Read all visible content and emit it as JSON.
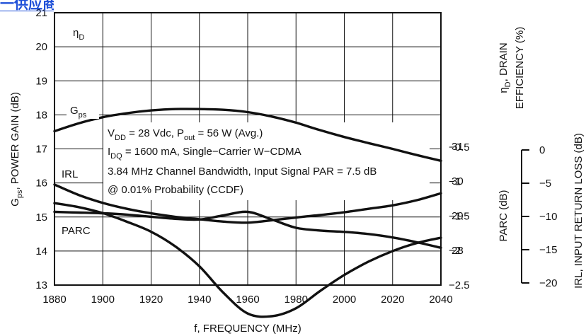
{
  "watermark_text": "一供应商",
  "chart_data": {
    "type": "line",
    "title": "",
    "xlabel": "f, FREQUENCY (MHz)",
    "x_ticks": [
      1880,
      1900,
      1920,
      1940,
      1960,
      1980,
      2000,
      2020,
      2040
    ],
    "xlim": [
      1880,
      2040
    ],
    "y_left": {
      "label_main": "G",
      "label_sub": "ps",
      "label_rest": ", POWER GAIN (dB)",
      "ticks": [
        13,
        14,
        15,
        16,
        17,
        18,
        19,
        20,
        21
      ],
      "lim": [
        13,
        21
      ]
    },
    "y_eff": {
      "label_line1_sym": "η",
      "label_line1_sub": "D",
      "label_line1_rest": ", DRAIN",
      "label_line2": "EFFICIENCY (%)",
      "ticks": [
        28,
        29,
        30,
        31
      ],
      "lim": [
        27,
        31
      ]
    },
    "y_parc": {
      "label": "PARC (dB)",
      "ticks": [
        -0.5,
        -1,
        -1.5,
        -2,
        -2.5
      ],
      "tick_labels": [
        "−0.5",
        "−1",
        "−1.5",
        "−2",
        "−2.5"
      ],
      "lim": [
        -2.5,
        0
      ]
    },
    "y_irl": {
      "label": "IRL, INPUT RETURN LOSS (dB)",
      "ticks": [
        0,
        -5,
        -10,
        -15,
        -20
      ],
      "tick_labels": [
        "0",
        "−5",
        "−10",
        "−15",
        "−20"
      ],
      "lim": [
        -20,
        0
      ]
    },
    "annotation": {
      "line1": [
        "V",
        "DD",
        " = 28 Vdc, P",
        "out",
        " = 56 W (Avg.)"
      ],
      "line2": [
        "I",
        "DQ",
        " = 1600 mA, Single−Carrier W−CDMA"
      ],
      "line3": "3.84 MHz Channel Bandwidth, Input Signal PAR = 7.5 dB",
      "line4": "@ 0.01% Probability (CCDF)"
    },
    "series": [
      {
        "name": "ηD",
        "axis": "eff",
        "x": [
          1880,
          1890,
          1900,
          1910,
          1920,
          1930,
          1940,
          1950,
          1960,
          1970,
          1980,
          1990,
          2000,
          2010,
          2020,
          2030,
          2040
        ],
        "y": [
          29.9,
          29.6,
          29.37,
          29.2,
          29.07,
          28.97,
          28.9,
          28.83,
          28.8,
          28.87,
          28.95,
          29.02,
          29.1,
          29.2,
          29.3,
          29.45,
          29.65
        ]
      },
      {
        "name": "Gps",
        "axis": "left",
        "x": [
          1880,
          1890,
          1900,
          1910,
          1920,
          1930,
          1940,
          1950,
          1960,
          1970,
          1980,
          1990,
          2000,
          2010,
          2020,
          2030,
          2040
        ],
        "y": [
          17.52,
          17.75,
          17.93,
          18.05,
          18.13,
          18.17,
          18.17,
          18.15,
          18.08,
          17.95,
          17.77,
          17.55,
          17.35,
          17.17,
          17.0,
          16.82,
          16.65
        ]
      },
      {
        "name": "IRL",
        "axis": "irl",
        "x": [
          1880,
          1890,
          1900,
          1910,
          1920,
          1930,
          1940,
          1950,
          1960,
          1970,
          1980,
          1990,
          2000,
          2010,
          2020,
          2030,
          2040
        ],
        "y": [
          -8.0,
          -8.6,
          -9.5,
          -10.8,
          -12.3,
          -14.5,
          -17.5,
          -21.5,
          -24.6,
          -25.0,
          -23.8,
          -21.2,
          -18.8,
          -16.8,
          -15.2,
          -14.0,
          -13.2
        ]
      },
      {
        "name": "PARC",
        "axis": "parc",
        "x": [
          1880,
          1890,
          1900,
          1910,
          1920,
          1930,
          1940,
          1950,
          1960,
          1970,
          1980,
          1990,
          2000,
          2010,
          2020,
          2030,
          2040
        ],
        "y": [
          -1.44,
          -1.45,
          -1.46,
          -1.48,
          -1.51,
          -1.54,
          -1.55,
          -1.49,
          -1.44,
          -1.55,
          -1.67,
          -1.71,
          -1.73,
          -1.76,
          -1.81,
          -1.88,
          -1.96
        ]
      }
    ],
    "series_labels": [
      "η",
      "D",
      "G",
      "ps",
      "IRL",
      "PARC"
    ]
  }
}
